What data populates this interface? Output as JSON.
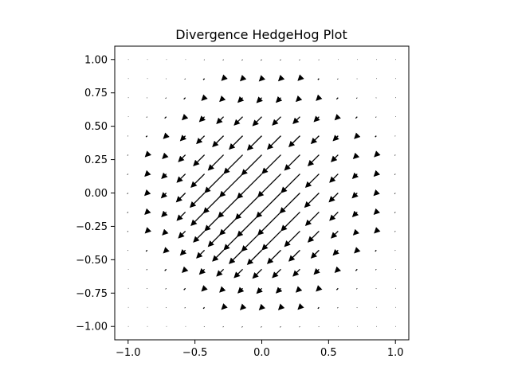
{
  "chart_data": {
    "type": "quiver",
    "title": "Divergence HedgeHog Plot",
    "xlabel": "",
    "ylabel": "",
    "xlim": [
      -1.1,
      1.1
    ],
    "ylim": [
      -1.1,
      1.1
    ],
    "xticks": [
      -1.0,
      -0.5,
      0.0,
      0.5,
      1.0
    ],
    "xtick_labels": [
      "−1.0",
      "−0.5",
      "0.0",
      "0.5",
      "1.0"
    ],
    "yticks": [
      1.0,
      0.75,
      0.5,
      0.25,
      0.0,
      -0.25,
      -0.5,
      -0.75,
      -1.0
    ],
    "ytick_labels": [
      "1.00",
      "0.75",
      "0.50",
      "0.25",
      "0.00",
      "−0.25",
      "−0.50",
      "−0.75",
      "−1.00"
    ],
    "grid": false,
    "arrow_color": "#000000",
    "grid_points": {
      "x_start": -1.0,
      "x_stop": 1.0,
      "x_count": 15,
      "y_start": -1.0,
      "y_stop": 1.0,
      "y_count": 15
    },
    "vector_field": "(u, v) = -(1,1)·exp(-(x²+y²)/0.3)"
  }
}
